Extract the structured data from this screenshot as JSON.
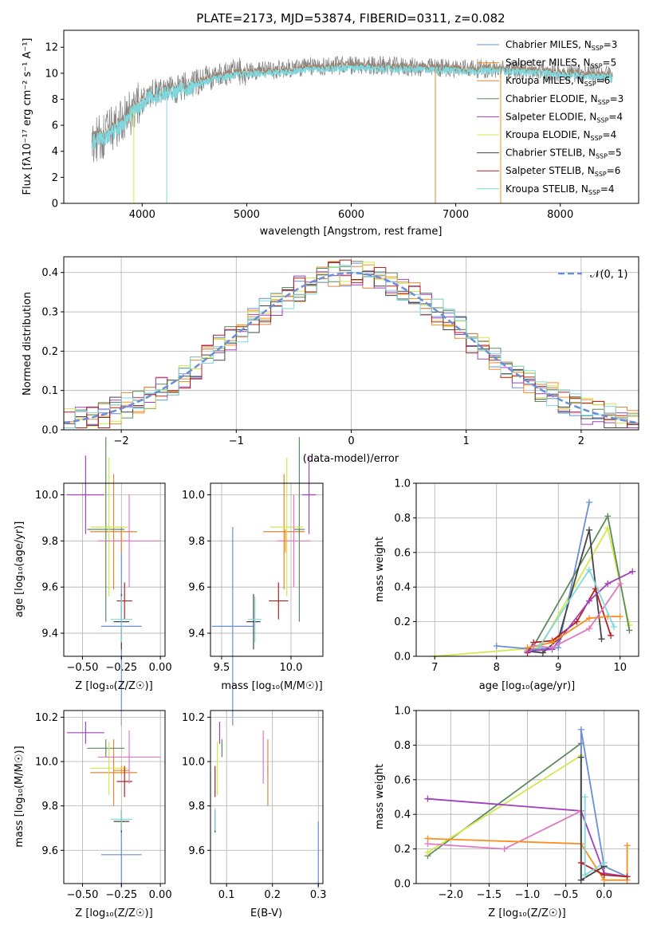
{
  "title": "PLATE=2173, MJD=53874, FIBERID=0311, z=0.082",
  "legend_models": [
    {
      "name": "Chabrier MILES",
      "n": "3",
      "color": "#6a8fd8"
    },
    {
      "name": "Salpeter MILES",
      "n": "5",
      "color": "#ff8c1a"
    },
    {
      "name": "Kroupa MILES",
      "n": "6",
      "color": "#d9893a"
    },
    {
      "name": "Chabrier ELODIE",
      "n": "3",
      "color": "#5f8a5f"
    },
    {
      "name": "Salpeter ELODIE",
      "n": "4",
      "color": "#a23ec0"
    },
    {
      "name": "Kroupa ELODIE",
      "n": "4",
      "color": "#d4e84c"
    },
    {
      "name": "Chabrier STELIB",
      "n": "5",
      "color": "#444444"
    },
    {
      "name": "Salpeter STELIB",
      "n": "6",
      "color": "#b22222"
    },
    {
      "name": "Kroupa STELIB",
      "n": "4",
      "color": "#7fd8de"
    }
  ],
  "chart_data": [
    {
      "id": "spectrum",
      "type": "line",
      "xlabel": "wavelength [Angstrom, rest frame]",
      "ylabel": "Flux [fλ10⁻¹⁷ erg cm⁻² s⁻¹ A⁻¹]",
      "xlim": [
        3250,
        8750
      ],
      "ylim": [
        0,
        13.3
      ],
      "xticks": [
        4000,
        5000,
        6000,
        7000,
        8000
      ],
      "yticks": [
        0,
        2,
        4,
        6,
        8,
        10,
        12
      ],
      "data_color": "#808080",
      "model_color": "#7fd8de",
      "continuum": [
        [
          3520,
          4.6
        ],
        [
          3650,
          5.3
        ],
        [
          3800,
          6.2
        ],
        [
          3900,
          7.0
        ],
        [
          4000,
          7.9
        ],
        [
          4100,
          8.5
        ],
        [
          4300,
          8.7
        ],
        [
          4500,
          9.3
        ],
        [
          4700,
          9.8
        ],
        [
          4900,
          10.1
        ],
        [
          5100,
          10.2
        ],
        [
          5300,
          10.3
        ],
        [
          5600,
          10.5
        ],
        [
          5900,
          10.6
        ],
        [
          6200,
          10.6
        ],
        [
          6500,
          10.5
        ],
        [
          6800,
          10.4
        ],
        [
          7100,
          10.4
        ],
        [
          7400,
          10.3
        ],
        [
          7700,
          10.2
        ],
        [
          8000,
          10.1
        ],
        [
          8300,
          10.0
        ],
        [
          8500,
          9.9
        ]
      ],
      "model_continuum": [
        [
          3520,
          4.8
        ],
        [
          3650,
          5.2
        ],
        [
          3800,
          6.1
        ],
        [
          3900,
          7.0
        ],
        [
          4000,
          7.8
        ],
        [
          4100,
          8.4
        ],
        [
          4300,
          8.6
        ],
        [
          4500,
          9.2
        ],
        [
          4700,
          9.7
        ],
        [
          4900,
          10.0
        ],
        [
          5100,
          10.1
        ],
        [
          5300,
          10.2
        ],
        [
          5600,
          10.4
        ],
        [
          5900,
          10.5
        ],
        [
          6200,
          10.5
        ],
        [
          6500,
          10.4
        ],
        [
          6800,
          10.4
        ],
        [
          7100,
          10.3
        ],
        [
          7400,
          10.3
        ],
        [
          7700,
          10.2
        ],
        [
          8000,
          10.0
        ],
        [
          8300,
          9.9
        ],
        [
          8500,
          9.8
        ]
      ],
      "drops": [
        3920,
        4235,
        6805,
        7430
      ]
    },
    {
      "id": "residuals",
      "type": "histogram",
      "xlabel": "(data-model)/error",
      "ylabel": "Normed distribution",
      "xlim": [
        -2.5,
        2.5
      ],
      "ylim": [
        0,
        0.44
      ],
      "xticks": [
        -2,
        -1,
        0,
        1,
        2
      ],
      "yticks": [
        0,
        0.1,
        0.2,
        0.3,
        0.4
      ],
      "legend": "𝒩(0, 1)",
      "gaussian_color": "#6a8fd8",
      "bin_width": 0.1
    },
    {
      "id": "age_vs_Z",
      "type": "errorbar",
      "xlabel": "Z [log₁₀(Z/Z☉)]",
      "ylabel": "age  [log₁₀(age/yr)]",
      "xlim": [
        -0.62,
        0.03
      ],
      "ylim": [
        9.3,
        10.05
      ],
      "xticks": [
        -0.5,
        -0.25,
        0.0
      ],
      "yticks": [
        9.4,
        9.6,
        9.8,
        10.0
      ],
      "points": [
        {
          "x": -0.25,
          "xerr": 0.13,
          "y": 9.43,
          "yerr": 0.43,
          "color": "#6a8fd8"
        },
        {
          "x": -0.25,
          "xerr": 0.05,
          "y": 9.8,
          "yerr": 0.05,
          "color": "#ff8c1a"
        },
        {
          "x": -0.3,
          "xerr": 0.15,
          "y": 9.84,
          "yerr": 0.25,
          "color": "#d9893a"
        },
        {
          "x": -0.35,
          "xerr": 0.12,
          "y": 9.85,
          "yerr": 0.4,
          "color": "#5f8a5f"
        },
        {
          "x": -0.48,
          "xerr": 0.12,
          "y": 10.0,
          "yerr": 0.17,
          "color": "#a23ec0"
        },
        {
          "x": -0.33,
          "xerr": 0.12,
          "y": 9.86,
          "yerr": 0.3,
          "color": "#d4e84c"
        },
        {
          "x": -0.25,
          "xerr": 0.05,
          "y": 9.45,
          "yerr": 0.12,
          "color": "#444444"
        },
        {
          "x": -0.23,
          "xerr": 0.05,
          "y": 9.54,
          "yerr": 0.08,
          "color": "#b22222"
        },
        {
          "x": -0.25,
          "xerr": 0.07,
          "y": 9.46,
          "yerr": 0.1,
          "color": "#7fd8de"
        },
        {
          "x": -0.2,
          "xerr": 0.2,
          "y": 9.8,
          "yerr": 0.2,
          "color": "#e377c2"
        }
      ]
    },
    {
      "id": "age_vs_mass",
      "type": "errorbar",
      "xlabel": "mass [log₁₀(M/M☉)]",
      "xlim": [
        9.42,
        10.23
      ],
      "ylim": [
        9.3,
        10.05
      ],
      "xticks": [
        9.5,
        10.0
      ],
      "yticks": [
        9.4,
        9.6,
        9.8,
        10.0
      ],
      "points": [
        {
          "x": 9.58,
          "xerr": 0.15,
          "y": 9.43,
          "yerr": 0.43,
          "color": "#6a8fd8"
        },
        {
          "x": 9.96,
          "xerr": 0.02,
          "y": 9.8,
          "yerr": 0.05,
          "color": "#ff8c1a"
        },
        {
          "x": 9.95,
          "xerr": 0.15,
          "y": 9.84,
          "yerr": 0.25,
          "color": "#d9893a"
        },
        {
          "x": 10.06,
          "xerr": 0.04,
          "y": 9.85,
          "yerr": 0.4,
          "color": "#5f8a5f"
        },
        {
          "x": 10.13,
          "xerr": 0.05,
          "y": 10.0,
          "yerr": 0.17,
          "color": "#a23ec0"
        },
        {
          "x": 9.97,
          "xerr": 0.12,
          "y": 9.86,
          "yerr": 0.3,
          "color": "#d4e84c"
        },
        {
          "x": 9.73,
          "xerr": 0.05,
          "y": 9.45,
          "yerr": 0.12,
          "color": "#444444"
        },
        {
          "x": 9.91,
          "xerr": 0.07,
          "y": 9.54,
          "yerr": 0.08,
          "color": "#b22222"
        },
        {
          "x": 9.74,
          "xerr": 0.05,
          "y": 9.46,
          "yerr": 0.1,
          "color": "#7fd8de"
        },
        {
          "x": 10.02,
          "xerr": 0.12,
          "y": 9.8,
          "yerr": 0.2,
          "color": "#e377c2"
        }
      ]
    },
    {
      "id": "weight_vs_age",
      "type": "line",
      "xlabel": "age  [log₁₀(age/yr)]",
      "ylabel": "mass weight",
      "xlim": [
        6.7,
        10.3
      ],
      "ylim": [
        0,
        1.0
      ],
      "xticks": [
        7,
        8,
        9,
        10
      ],
      "yticks": [
        0,
        0.2,
        0.4,
        0.6,
        0.8,
        1.0
      ],
      "series": [
        {
          "color": "#d4e84c",
          "x": [
            7.0,
            8.7,
            9.8,
            10.15
          ],
          "y": [
            0.0,
            0.05,
            0.74,
            0.18
          ]
        },
        {
          "color": "#6a8fd8",
          "x": [
            8.0,
            8.6,
            9.0,
            9.5
          ],
          "y": [
            0.06,
            0.04,
            0.05,
            0.89
          ]
        },
        {
          "color": "#5f8a5f",
          "x": [
            8.6,
            9.8,
            10.15
          ],
          "y": [
            0.06,
            0.81,
            0.15
          ]
        },
        {
          "color": "#444444",
          "x": [
            8.5,
            8.75,
            9.0,
            9.5,
            9.7
          ],
          "y": [
            0.03,
            0.02,
            0.1,
            0.73,
            0.1
          ]
        },
        {
          "color": "#b22222",
          "x": [
            8.5,
            8.6,
            8.9,
            9.3,
            9.6,
            9.85
          ],
          "y": [
            0.02,
            0.08,
            0.09,
            0.2,
            0.39,
            0.12
          ]
        },
        {
          "color": "#a23ec0",
          "x": [
            8.5,
            8.9,
            9.5,
            9.8,
            10.2
          ],
          "y": [
            0.03,
            0.04,
            0.32,
            0.42,
            0.49
          ]
        },
        {
          "color": "#ff8c1a",
          "x": [
            8.5,
            8.9,
            9.5,
            9.8,
            10.0
          ],
          "y": [
            0.05,
            0.08,
            0.22,
            0.23,
            0.23
          ]
        },
        {
          "color": "#e377c2",
          "x": [
            8.6,
            8.9,
            9.5,
            10.0
          ],
          "y": [
            0.06,
            0.05,
            0.16,
            0.42
          ]
        },
        {
          "color": "#7fd8de",
          "x": [
            8.7,
            9.5,
            9.9
          ],
          "y": [
            0.06,
            0.5,
            0.17
          ]
        }
      ]
    },
    {
      "id": "mass_vs_Z",
      "type": "errorbar",
      "xlabel": "Z [log₁₀(Z/Z☉)]",
      "ylabel": "mass [log₁₀(M/M☉)]",
      "xlim": [
        -0.62,
        0.03
      ],
      "ylim": [
        9.45,
        10.23
      ],
      "xticks": [
        -0.5,
        -0.25,
        0.0
      ],
      "yticks": [
        9.6,
        9.8,
        10.0,
        10.2
      ],
      "points": [
        {
          "x": -0.25,
          "xerr": 0.13,
          "y": 9.58,
          "yerr": 0.15,
          "color": "#6a8fd8"
        },
        {
          "x": -0.25,
          "xerr": 0.05,
          "y": 9.96,
          "yerr": 0.02,
          "color": "#ff8c1a"
        },
        {
          "x": -0.3,
          "xerr": 0.15,
          "y": 9.95,
          "yerr": 0.15,
          "color": "#d9893a"
        },
        {
          "x": -0.35,
          "xerr": 0.12,
          "y": 10.06,
          "yerr": 0.04,
          "color": "#5f8a5f"
        },
        {
          "x": -0.48,
          "xerr": 0.12,
          "y": 10.13,
          "yerr": 0.05,
          "color": "#a23ec0"
        },
        {
          "x": -0.33,
          "xerr": 0.12,
          "y": 9.97,
          "yerr": 0.12,
          "color": "#d4e84c"
        },
        {
          "x": -0.25,
          "xerr": 0.05,
          "y": 9.73,
          "yerr": 0.05,
          "color": "#444444"
        },
        {
          "x": -0.23,
          "xerr": 0.05,
          "y": 9.91,
          "yerr": 0.07,
          "color": "#b22222"
        },
        {
          "x": -0.25,
          "xerr": 0.07,
          "y": 9.74,
          "yerr": 0.05,
          "color": "#7fd8de"
        },
        {
          "x": -0.2,
          "xerr": 0.2,
          "y": 10.02,
          "yerr": 0.12,
          "color": "#e377c2"
        }
      ]
    },
    {
      "id": "mass_vs_ebv",
      "type": "errorbar",
      "xlabel": "E(B-V)",
      "xlim": [
        0.065,
        0.31
      ],
      "ylim": [
        9.45,
        10.23
      ],
      "xticks": [
        0.1,
        0.2,
        0.3
      ],
      "yticks": [
        9.6,
        9.8,
        10.0,
        10.2
      ],
      "points": [
        {
          "x": 0.3,
          "xerr": 0,
          "y": 9.58,
          "yerr": 0.15,
          "color": "#6a8fd8"
        },
        {
          "x": 0.19,
          "xerr": 0,
          "y": 9.96,
          "yerr": 0.02,
          "color": "#ff8c1a"
        },
        {
          "x": 0.19,
          "xerr": 0,
          "y": 9.95,
          "yerr": 0.15,
          "color": "#d9893a"
        },
        {
          "x": 0.09,
          "xerr": 0,
          "y": 10.06,
          "yerr": 0.04,
          "color": "#5f8a5f"
        },
        {
          "x": 0.085,
          "xerr": 0,
          "y": 10.13,
          "yerr": 0.05,
          "color": "#a23ec0"
        },
        {
          "x": 0.08,
          "xerr": 0,
          "y": 9.97,
          "yerr": 0.12,
          "color": "#d4e84c"
        },
        {
          "x": 0.075,
          "xerr": 0,
          "y": 9.73,
          "yerr": 0.05,
          "color": "#444444"
        },
        {
          "x": 0.075,
          "xerr": 0,
          "y": 9.91,
          "yerr": 0.07,
          "color": "#b22222"
        },
        {
          "x": 0.075,
          "xerr": 0,
          "y": 9.74,
          "yerr": 0.05,
          "color": "#7fd8de"
        },
        {
          "x": 0.18,
          "xerr": 0,
          "y": 10.02,
          "yerr": 0.12,
          "color": "#e377c2"
        }
      ]
    },
    {
      "id": "weight_vs_Z",
      "type": "line",
      "xlabel": "Z [log₁₀(Z/Z☉)]",
      "ylabel": "mass weight",
      "xlim": [
        -2.45,
        0.45
      ],
      "ylim": [
        0,
        1.0
      ],
      "xticks": [
        -2.0,
        -1.5,
        -1.0,
        -0.5,
        0.0
      ],
      "yticks": [
        0,
        0.2,
        0.4,
        0.6,
        0.8,
        1.0
      ],
      "series": [
        {
          "color": "#5f8a5f",
          "x": [
            -2.3,
            -0.3,
            -0.3
          ],
          "y": [
            0.16,
            0.81,
            0.02
          ]
        },
        {
          "color": "#d4e84c",
          "x": [
            -2.3,
            -0.3,
            -0.3
          ],
          "y": [
            0.18,
            0.74,
            0.02
          ]
        },
        {
          "color": "#a23ec0",
          "x": [
            -2.3,
            -0.3,
            0.0,
            0.3
          ],
          "y": [
            0.49,
            0.42,
            0.06,
            0.04
          ]
        },
        {
          "color": "#e377c2",
          "x": [
            -2.3,
            -1.3,
            -0.3
          ],
          "y": [
            0.23,
            0.2,
            0.42
          ]
        },
        {
          "color": "#ff8c1a",
          "x": [
            -2.3,
            -0.3,
            0.0,
            0.3,
            0.3
          ],
          "y": [
            0.26,
            0.23,
            0.02,
            0.02,
            0.22
          ]
        },
        {
          "color": "#6a8fd8",
          "x": [
            -0.3,
            -0.3,
            0.0,
            0.3
          ],
          "y": [
            0.02,
            0.89,
            0.1,
            0.04
          ]
        },
        {
          "color": "#444444",
          "x": [
            -0.3,
            -0.3,
            0.0
          ],
          "y": [
            0.73,
            0.02,
            0.1
          ]
        },
        {
          "color": "#b22222",
          "x": [
            -0.3,
            0.0,
            0.3
          ],
          "y": [
            0.12,
            0.05,
            0.04
          ]
        },
        {
          "color": "#7fd8de",
          "x": [
            -0.25,
            -0.25,
            0.0
          ],
          "y": [
            0.5,
            0.05,
            0.12
          ]
        }
      ]
    }
  ]
}
